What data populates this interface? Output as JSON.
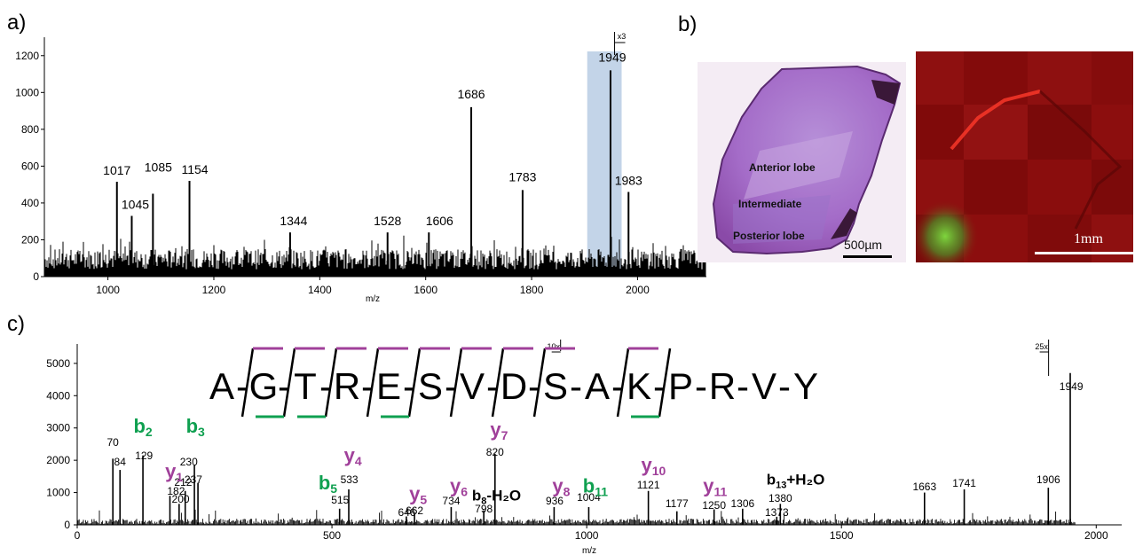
{
  "panels": {
    "a": "a)",
    "b": "b)",
    "c": "c)"
  },
  "colors": {
    "green": "#0fa050",
    "magenta": "#a0409a",
    "highlight": "#c3d4e8"
  },
  "chart_data": [
    {
      "type": "line",
      "panel": "a",
      "xlabel": "m/z",
      "ylabel": "",
      "xlim": [
        880,
        2130
      ],
      "ylim": [
        0,
        1300
      ],
      "xticks": [
        1000,
        1200,
        1400,
        1600,
        1800,
        2000
      ],
      "yticks": [
        0,
        200,
        400,
        600,
        800,
        1000,
        1200
      ],
      "highlight_range": [
        1905,
        1970
      ],
      "scale_note": "x3",
      "scale_note_mz": 1960,
      "peaks": [
        {
          "mz": 1017,
          "intensity": 515,
          "label": "1017"
        },
        {
          "mz": 1045,
          "intensity": 330,
          "label": "1045"
        },
        {
          "mz": 1085,
          "intensity": 450,
          "label": "1085"
        },
        {
          "mz": 1154,
          "intensity": 520,
          "label": "1154"
        },
        {
          "mz": 1344,
          "intensity": 240,
          "label": "1344"
        },
        {
          "mz": 1528,
          "intensity": 240,
          "label": "1528"
        },
        {
          "mz": 1606,
          "intensity": 240,
          "label": "1606"
        },
        {
          "mz": 1686,
          "intensity": 920,
          "label": "1686"
        },
        {
          "mz": 1783,
          "intensity": 470,
          "label": "1783"
        },
        {
          "mz": 1949,
          "intensity": 1120,
          "label": "1949"
        },
        {
          "mz": 1983,
          "intensity": 460,
          "label": "1983"
        }
      ]
    },
    {
      "type": "line",
      "panel": "c",
      "xlabel": "m/z",
      "ylabel": "",
      "xlim": [
        0,
        2050
      ],
      "ylim": [
        0,
        5600
      ],
      "xticks": [
        0,
        500,
        1000,
        1500,
        2000
      ],
      "yticks": [
        0,
        1000,
        2000,
        3000,
        4000,
        5000
      ],
      "scale_notes": [
        {
          "text": "10x",
          "mz": 940
        },
        {
          "text": "25x",
          "mz": 1910
        }
      ],
      "peaks": [
        {
          "mz": 70,
          "intensity": 2050,
          "label": "70"
        },
        {
          "mz": 84,
          "intensity": 1700,
          "label": "84"
        },
        {
          "mz": 129,
          "intensity": 2150,
          "label": "129"
        },
        {
          "mz": 182,
          "intensity": 900,
          "label": "182"
        },
        {
          "mz": 200,
          "intensity": 650,
          "label": "200"
        },
        {
          "mz": 212,
          "intensity": 1050,
          "label": "212"
        },
        {
          "mz": 230,
          "intensity": 1850,
          "label": "230"
        },
        {
          "mz": 237,
          "intensity": 1300,
          "label": "237"
        },
        {
          "mz": 515,
          "intensity": 500,
          "label": "515"
        },
        {
          "mz": 533,
          "intensity": 1100,
          "label": "533"
        },
        {
          "mz": 646,
          "intensity": 260,
          "label": "646"
        },
        {
          "mz": 662,
          "intensity": 330,
          "label": "662"
        },
        {
          "mz": 734,
          "intensity": 550,
          "label": "734"
        },
        {
          "mz": 798,
          "intensity": 450,
          "label": "798"
        },
        {
          "mz": 820,
          "intensity": 2200,
          "label": "820"
        },
        {
          "mz": 936,
          "intensity": 550,
          "label": "936"
        },
        {
          "mz": 1004,
          "intensity": 550,
          "label": "1004"
        },
        {
          "mz": 1121,
          "intensity": 1050,
          "label": "1121"
        },
        {
          "mz": 1177,
          "intensity": 420,
          "label": "1177"
        },
        {
          "mz": 1250,
          "intensity": 480,
          "label": "1250"
        },
        {
          "mz": 1306,
          "intensity": 500,
          "label": "1306"
        },
        {
          "mz": 1373,
          "intensity": 250,
          "label": "1373"
        },
        {
          "mz": 1380,
          "intensity": 650,
          "label": "1380"
        },
        {
          "mz": 1663,
          "intensity": 1000,
          "label": "1663"
        },
        {
          "mz": 1741,
          "intensity": 1100,
          "label": "1741"
        },
        {
          "mz": 1906,
          "intensity": 1150,
          "label": "1906"
        },
        {
          "mz": 1949,
          "intensity": 4700,
          "label": "1949"
        }
      ],
      "ion_labels": [
        {
          "base": "b",
          "sub": "2",
          "series": "b",
          "mz": 129,
          "level": 2850
        },
        {
          "base": "b",
          "sub": "3",
          "series": "b",
          "mz": 232,
          "level": 2850
        },
        {
          "base": "y",
          "sub": "1",
          "series": "y",
          "mz": 190,
          "level": 1450
        },
        {
          "base": "y",
          "sub": "4",
          "series": "y",
          "mz": 541,
          "level": 1950
        },
        {
          "base": "b",
          "sub": "5",
          "series": "b",
          "mz": 492,
          "level": 1100
        },
        {
          "base": "y",
          "sub": "5",
          "series": "y",
          "mz": 669,
          "level": 750
        },
        {
          "base": "y",
          "sub": "6",
          "series": "y",
          "mz": 749,
          "level": 1000
        },
        {
          "base": "y",
          "sub": "7",
          "series": "y",
          "mz": 828,
          "level": 2750
        },
        {
          "base": "y",
          "sub": "8",
          "series": "y",
          "mz": 950,
          "level": 1000
        },
        {
          "base": "b",
          "sub": "11",
          "series": "b",
          "mz": 1017,
          "level": 1000
        },
        {
          "base": "y",
          "sub": "10",
          "series": "y",
          "mz": 1131,
          "level": 1650
        },
        {
          "base": "y",
          "sub": "11",
          "series": "y",
          "mz": 1252,
          "level": 1000
        },
        {
          "base": "b",
          "sub": "8",
          "series": "other",
          "suffix": "-H₂O",
          "mz": 823,
          "level": 750
        },
        {
          "base": "b",
          "sub": "13",
          "series": "other",
          "suffix": "+H₂O",
          "mz": 1410,
          "level": 1250
        }
      ],
      "peptide": {
        "residues": [
          "A",
          "G",
          "T",
          "R",
          "E",
          "S",
          "V",
          "D",
          "S",
          "A",
          "K",
          "P",
          "R",
          "V",
          "Y"
        ],
        "separator": "-",
        "cleavages": [
          {
            "after": 1,
            "b": false,
            "y": true
          },
          {
            "after": 2,
            "b": true,
            "y": true
          },
          {
            "after": 3,
            "b": true,
            "y": true
          },
          {
            "after": 4,
            "b": false,
            "y": true
          },
          {
            "after": 5,
            "b": true,
            "y": true
          },
          {
            "after": 6,
            "b": false,
            "y": true
          },
          {
            "after": 7,
            "b": false,
            "y": true
          },
          {
            "after": 8,
            "b": false,
            "y": true
          },
          {
            "after": 10,
            "b": false,
            "y": true
          },
          {
            "after": 11,
            "b": true,
            "y": false
          }
        ]
      }
    }
  ],
  "panel_b": {
    "histology_labels": [
      "Anterior lobe",
      "Intermediate",
      "Posterior lobe"
    ],
    "scale_bar_left": "500µm",
    "scale_bar_right": "1mm"
  }
}
